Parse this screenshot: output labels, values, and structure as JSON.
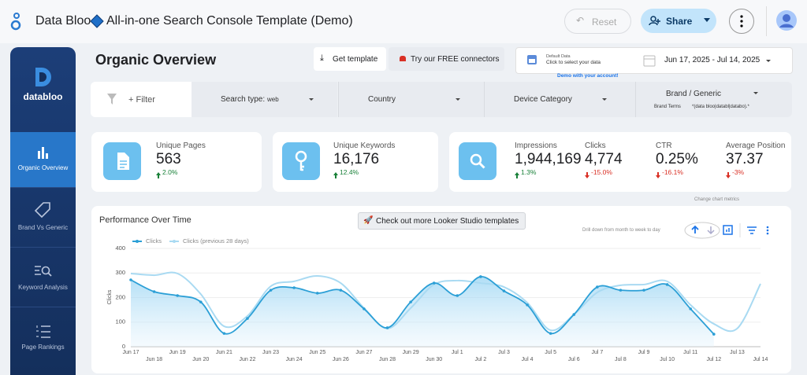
{
  "header": {
    "brand": "Data Bloo",
    "title": "All-in-one Search Console Template (Demo)",
    "reset": "Reset",
    "share": "Share"
  },
  "sidebar": {
    "logo": "databloo",
    "items": [
      "Organic Overview",
      "Brand Vs Generic",
      "Keyword Analysis",
      "Page Rankings"
    ]
  },
  "page_title": "Organic Overview",
  "toolbar": {
    "get_template": "Get template",
    "connectors": "Try our FREE connectors",
    "data_label": "Default Data",
    "data_hint": "Click to select your data",
    "demo_note": "Demo with your account!",
    "date_range": "Jun 17, 2025 - Jul 14, 2025"
  },
  "filters": {
    "add": "+ Filter",
    "search_type_label": "Search type:",
    "search_type_value": "web",
    "country": "Country",
    "device": "Device Category",
    "brand": "Brand / Generic",
    "brand_terms_label": "Brand Terms",
    "brand_terms_value": "*(data bloo|databl|databo).*"
  },
  "kpis": [
    {
      "label": "Unique Pages",
      "value": "563",
      "change": "2.0%",
      "trend": "up"
    },
    {
      "label": "Unique Keywords",
      "value": "16,176",
      "change": "12.4%",
      "trend": "up"
    },
    {
      "label": "Impressions",
      "value": "1,944,169",
      "change": "1.3%",
      "trend": "up"
    },
    {
      "label": "Clicks",
      "value": "4,774",
      "change": "-15.0%",
      "trend": "down"
    },
    {
      "label": "CTR",
      "value": "0.25%",
      "change": "-16.1%",
      "trend": "down"
    },
    {
      "label": "Average Position",
      "value": "37.37",
      "change": "-3%",
      "trend": "down"
    }
  ],
  "chart_card": {
    "check_templates": "Check out more Looker Studio templates",
    "change_metrics": "Change chart metrics",
    "drill": "Drill down from month to week to day"
  },
  "chart_data": {
    "type": "line",
    "title": "Performance Over Time",
    "y_label": "Clicks",
    "categories": [
      "Jun 17",
      "Jun 18",
      "Jun 19",
      "Jun 20",
      "Jun 21",
      "Jun 22",
      "Jun 23",
      "Jun 24",
      "Jun 25",
      "Jun 26",
      "Jun 27",
      "Jun 28",
      "Jun 29",
      "Jun 30",
      "Jul 1",
      "Jul 2",
      "Jul 3",
      "Jul 4",
      "Jul 5",
      "Jul 6",
      "Jul 7",
      "Jul 8",
      "Jul 9",
      "Jul 10",
      "Jul 11",
      "Jul 12",
      "Jul 13",
      "Jul 14"
    ],
    "series": [
      {
        "name": "Clicks",
        "color": "#2b9fd6",
        "values": [
          272,
          224,
          208,
          182,
          54,
          115,
          230,
          240,
          218,
          230,
          154,
          77,
          182,
          259,
          208,
          285,
          227,
          170,
          54,
          131,
          243,
          230,
          230,
          253,
          154,
          51,
          null,
          null
        ]
      },
      {
        "name": "Clicks (previous 28 days)",
        "color": "#a9daf2",
        "values": [
          298,
          291,
          298,
          214,
          83,
          125,
          246,
          266,
          288,
          259,
          157,
          74,
          157,
          253,
          269,
          259,
          243,
          179,
          67,
          131,
          221,
          250,
          253,
          266,
          170,
          93,
          74,
          256
        ]
      }
    ],
    "ylim": [
      0,
      400
    ],
    "yticks": [
      0,
      100,
      200,
      300,
      400
    ],
    "grid": true
  }
}
